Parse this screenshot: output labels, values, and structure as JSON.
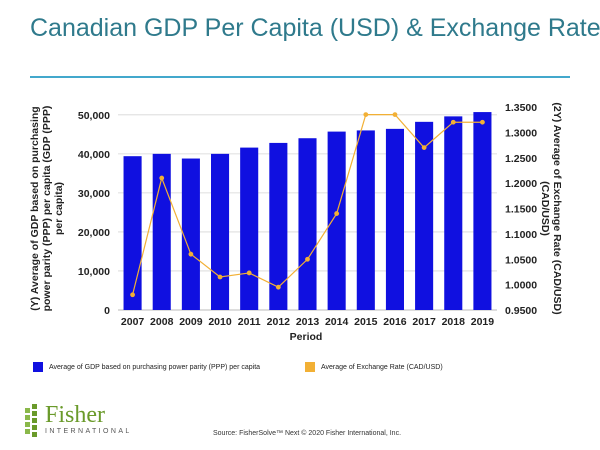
{
  "header": {
    "title": "Canadian GDP Per Capita (USD) & Exchange Rate"
  },
  "chart_data": {
    "type": "bar+line",
    "categories": [
      "2007",
      "2008",
      "2009",
      "2010",
      "2011",
      "2012",
      "2013",
      "2014",
      "2015",
      "2016",
      "2017",
      "2018",
      "2019"
    ],
    "series": [
      {
        "name": "Average of GDP based on purchasing power parity (PPP) per capita",
        "type": "bar",
        "axis": "left",
        "color": "#1010e0",
        "values": [
          39400,
          40000,
          38800,
          40000,
          41600,
          42800,
          44000,
          45700,
          46000,
          46400,
          48200,
          49600,
          50700
        ]
      },
      {
        "name": "Average of Exchange Rate (CAD/USD)",
        "type": "line",
        "axis": "right",
        "color": "#f2b035",
        "values": [
          0.98,
          1.21,
          1.06,
          1.015,
          1.023,
          0.995,
          1.05,
          1.14,
          1.335,
          1.335,
          1.27,
          1.32,
          1.32
        ]
      }
    ],
    "xlabel": "Period",
    "ylabel": "(Y) Average of GDP based on purchasing power parity (PPP) per capita (GDP (PPP) per capita)",
    "y2label": "(2Y) Average of Exchange Rate (CAD/USD) (CAD/USD)",
    "ylim": [
      0,
      52000
    ],
    "yticks": [
      0,
      10000,
      20000,
      30000,
      40000,
      50000
    ],
    "ytick_labels": [
      "0",
      "10,000",
      "20,000",
      "30,000",
      "40,000",
      "50,000"
    ],
    "y2lim": [
      0.95,
      1.35
    ],
    "y2ticks": [
      0.95,
      1.0,
      1.05,
      1.1,
      1.15,
      1.2,
      1.25,
      1.3,
      1.35
    ],
    "y2tick_labels": [
      "0.9500",
      "1.0000",
      "1.0500",
      "1.1000",
      "1.1500",
      "1.2000",
      "1.2500",
      "1.3000",
      "1.3500"
    ],
    "legend_position": "bottom"
  },
  "legend": {
    "gdp_label": "Average of GDP based on purchasing power parity (PPP) per capita",
    "rate_label": "Average of Exchange Rate (CAD/USD)"
  },
  "footer": {
    "brand_name": "Fisher",
    "brand_sub": "INTERNATIONAL",
    "source": "Source: FisherSolve™ Next © 2020 Fisher International, Inc."
  },
  "colors": {
    "title": "#2f7a8c",
    "rule": "#43a8cc",
    "bar": "#1010e0",
    "line": "#f2b035",
    "brand": "#6a9a2a"
  }
}
